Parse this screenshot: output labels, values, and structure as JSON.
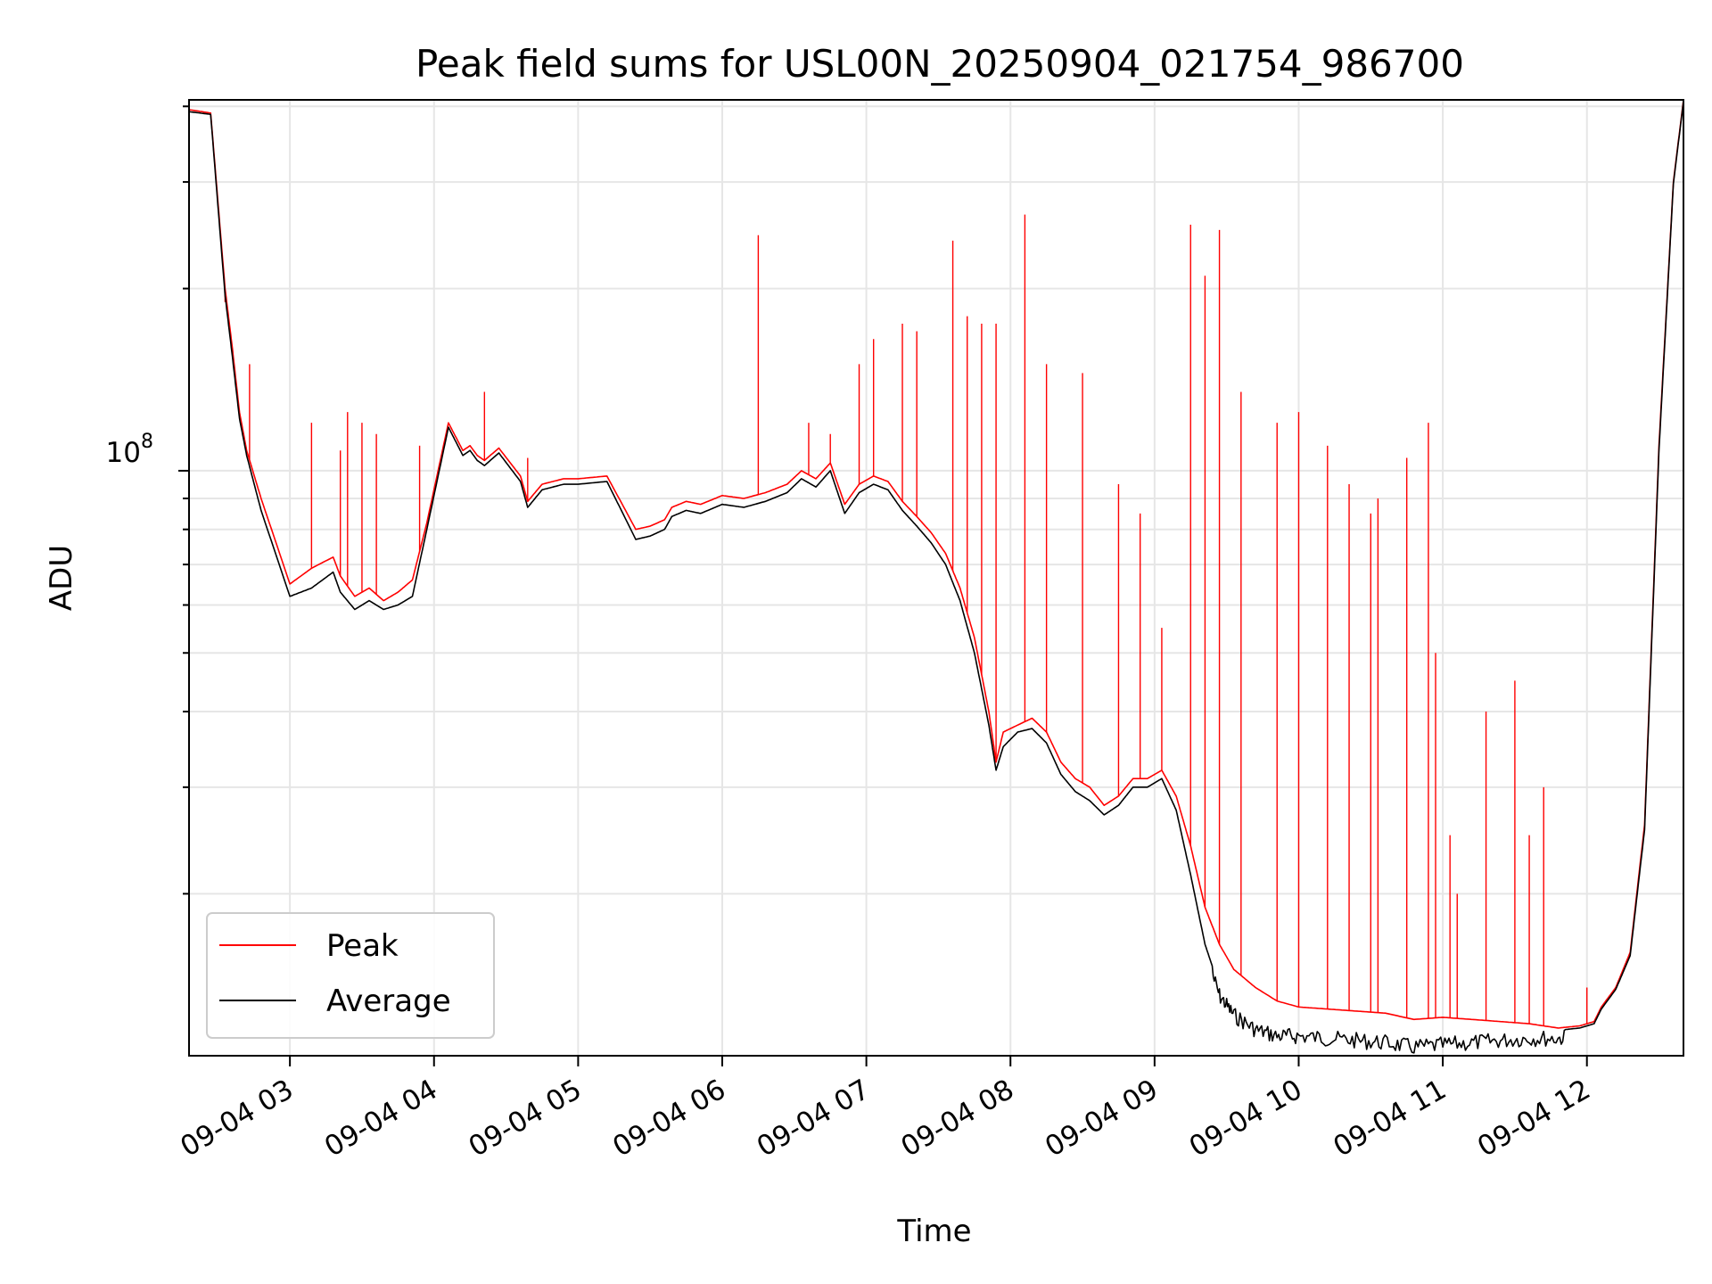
{
  "chart_data": {
    "type": "line",
    "title": "Peak field sums for USL00N_20250904_021754_986700",
    "xlabel": "Time",
    "ylabel": "ADU",
    "y_scale": "log",
    "grid": true,
    "legend_position": "lower-left",
    "x_tick_labels": [
      "09-04 03",
      "09-04 04",
      "09-04 05",
      "09-04 06",
      "09-04 07",
      "09-04 08",
      "09-04 09",
      "09-04 10",
      "09-04 11",
      "09-04 12"
    ],
    "x_ticks_hours": [
      3,
      4,
      5,
      6,
      7,
      8,
      9,
      10,
      11,
      12
    ],
    "xlim_hours": [
      2.3,
      12.67
    ],
    "y_tick_major_label": "10",
    "y_tick_major_exponent": "8",
    "y_tick_major_value": 100000000,
    "ylim": [
      10800000,
      410000000
    ],
    "series": [
      {
        "name": "Peak",
        "color": "#ff0000",
        "x": [
          2.3,
          2.45,
          2.55,
          2.6,
          2.65,
          2.7,
          2.8,
          3.0,
          3.15,
          3.3,
          3.35,
          3.45,
          3.55,
          3.65,
          3.75,
          3.85,
          3.95,
          4.1,
          4.2,
          4.25,
          4.3,
          4.35,
          4.45,
          4.6,
          4.65,
          4.75,
          4.9,
          4.95,
          5.0,
          5.2,
          5.4,
          5.5,
          5.6,
          5.65,
          5.75,
          5.85,
          6.0,
          6.15,
          6.3,
          6.45,
          6.55,
          6.65,
          6.75,
          6.85,
          6.95,
          7.05,
          7.15,
          7.25,
          7.35,
          7.45,
          7.55,
          7.65,
          7.75,
          7.85,
          7.9,
          7.95,
          8.05,
          8.15,
          8.25,
          8.35,
          8.45,
          8.55,
          8.65,
          8.75,
          8.85,
          8.95,
          9.05,
          9.15,
          9.25,
          9.35,
          9.45,
          9.55,
          9.7,
          9.85,
          10.0,
          10.2,
          10.4,
          10.6,
          10.8,
          11.0,
          11.2,
          11.4,
          11.6,
          11.8,
          11.95,
          12.05,
          12.1,
          12.2,
          12.3,
          12.4,
          12.5,
          12.6,
          12.67
        ],
        "values": [
          395000000,
          390000000,
          200000000,
          160000000,
          125000000,
          108000000,
          90000000,
          65000000,
          69000000,
          72000000,
          67000000,
          62000000,
          64000000,
          61000000,
          63000000,
          66000000,
          82000000,
          120000000,
          108000000,
          110000000,
          106000000,
          104000000,
          109000000,
          98000000,
          89000000,
          95000000,
          97000000,
          97000000,
          97000000,
          98000000,
          80000000,
          81000000,
          83000000,
          87000000,
          89000000,
          88000000,
          91000000,
          90000000,
          92000000,
          95000000,
          100000000,
          97000000,
          103000000,
          88000000,
          95000000,
          98000000,
          96000000,
          89000000,
          84000000,
          79000000,
          73000000,
          64000000,
          53000000,
          40000000,
          33000000,
          37000000,
          38000000,
          39000000,
          37000000,
          33000000,
          31000000,
          30000000,
          28000000,
          29000000,
          31000000,
          31000000,
          32000000,
          29000000,
          24000000,
          19000000,
          16500000,
          15000000,
          14000000,
          13300000,
          13000000,
          12900000,
          12800000,
          12700000,
          12400000,
          12500000,
          12400000,
          12300000,
          12200000,
          12000000,
          12100000,
          12300000,
          13000000,
          14000000,
          16000000,
          26000000,
          110000000,
          300000000,
          410000000
        ],
        "spikes": [
          [
            2.55,
            190000000
          ],
          [
            2.72,
            150000000
          ],
          [
            3.15,
            120000000
          ],
          [
            3.35,
            108000000
          ],
          [
            3.4,
            125000000
          ],
          [
            3.5,
            120000000
          ],
          [
            3.6,
            115000000
          ],
          [
            3.9,
            110000000
          ],
          [
            4.35,
            135000000
          ],
          [
            4.65,
            105000000
          ],
          [
            6.25,
            245000000
          ],
          [
            6.6,
            120000000
          ],
          [
            6.75,
            115000000
          ],
          [
            6.95,
            150000000
          ],
          [
            7.05,
            165000000
          ],
          [
            7.25,
            175000000
          ],
          [
            7.35,
            170000000
          ],
          [
            7.6,
            240000000
          ],
          [
            7.7,
            180000000
          ],
          [
            7.8,
            175000000
          ],
          [
            7.9,
            175000000
          ],
          [
            8.1,
            265000000
          ],
          [
            8.25,
            150000000
          ],
          [
            8.5,
            145000000
          ],
          [
            8.75,
            95000000
          ],
          [
            8.9,
            85000000
          ],
          [
            9.05,
            55000000
          ],
          [
            9.25,
            255000000
          ],
          [
            9.35,
            210000000
          ],
          [
            9.45,
            250000000
          ],
          [
            9.6,
            135000000
          ],
          [
            9.85,
            120000000
          ],
          [
            10.0,
            125000000
          ],
          [
            10.2,
            110000000
          ],
          [
            10.35,
            95000000
          ],
          [
            10.5,
            85000000
          ],
          [
            10.55,
            90000000
          ],
          [
            10.75,
            105000000
          ],
          [
            10.9,
            120000000
          ],
          [
            10.95,
            50000000
          ],
          [
            11.05,
            25000000
          ],
          [
            11.1,
            20000000
          ],
          [
            11.3,
            40000000
          ],
          [
            11.5,
            45000000
          ],
          [
            11.6,
            25000000
          ],
          [
            11.7,
            30000000
          ],
          [
            12.0,
            14000000
          ]
        ]
      },
      {
        "name": "Average",
        "color": "#000000",
        "x": [
          2.3,
          2.45,
          2.55,
          2.6,
          2.65,
          2.7,
          2.8,
          3.0,
          3.15,
          3.3,
          3.35,
          3.45,
          3.55,
          3.65,
          3.75,
          3.85,
          3.95,
          4.1,
          4.2,
          4.25,
          4.3,
          4.35,
          4.45,
          4.6,
          4.65,
          4.75,
          4.9,
          4.95,
          5.0,
          5.2,
          5.4,
          5.5,
          5.6,
          5.65,
          5.75,
          5.85,
          6.0,
          6.15,
          6.3,
          6.45,
          6.55,
          6.65,
          6.75,
          6.85,
          6.95,
          7.05,
          7.15,
          7.25,
          7.35,
          7.45,
          7.55,
          7.65,
          7.75,
          7.85,
          7.9,
          7.95,
          8.05,
          8.15,
          8.25,
          8.35,
          8.45,
          8.55,
          8.65,
          8.75,
          8.85,
          8.95,
          9.05,
          9.15,
          9.25,
          9.35,
          9.45,
          9.55,
          9.7,
          9.85,
          10.0,
          10.2,
          10.4,
          10.6,
          10.8,
          11.0,
          11.2,
          11.4,
          11.6,
          11.8,
          11.95,
          12.05,
          12.1,
          12.2,
          12.3,
          12.4,
          12.5,
          12.6,
          12.67
        ],
        "values": [
          392000000,
          388000000,
          195000000,
          155000000,
          122000000,
          106000000,
          86000000,
          62000000,
          64000000,
          68000000,
          63000000,
          59000000,
          61000000,
          59000000,
          60000000,
          62000000,
          80000000,
          118000000,
          106000000,
          108000000,
          104000000,
          102000000,
          107000000,
          96000000,
          87000000,
          93000000,
          95000000,
          95000000,
          95000000,
          96000000,
          77000000,
          78000000,
          80000000,
          84000000,
          86000000,
          85000000,
          88000000,
          87000000,
          89000000,
          92000000,
          97000000,
          94000000,
          100000000,
          85000000,
          92000000,
          95000000,
          93000000,
          86000000,
          81000000,
          76000000,
          70000000,
          61000000,
          50000000,
          38000000,
          32000000,
          35000000,
          37000000,
          37500000,
          35500000,
          31500000,
          29500000,
          28500000,
          27000000,
          28000000,
          30000000,
          30000000,
          31000000,
          27500000,
          21500000,
          16500000,
          14000000,
          13000000,
          12300000,
          12000000,
          12000000,
          11900000,
          11800000,
          11700000,
          11500000,
          11600000,
          11700000,
          11800000,
          11900000,
          11900000,
          12000000,
          12200000,
          12900000,
          13900000,
          15800000,
          25500000,
          108000000,
          298000000,
          408000000
        ]
      }
    ]
  }
}
